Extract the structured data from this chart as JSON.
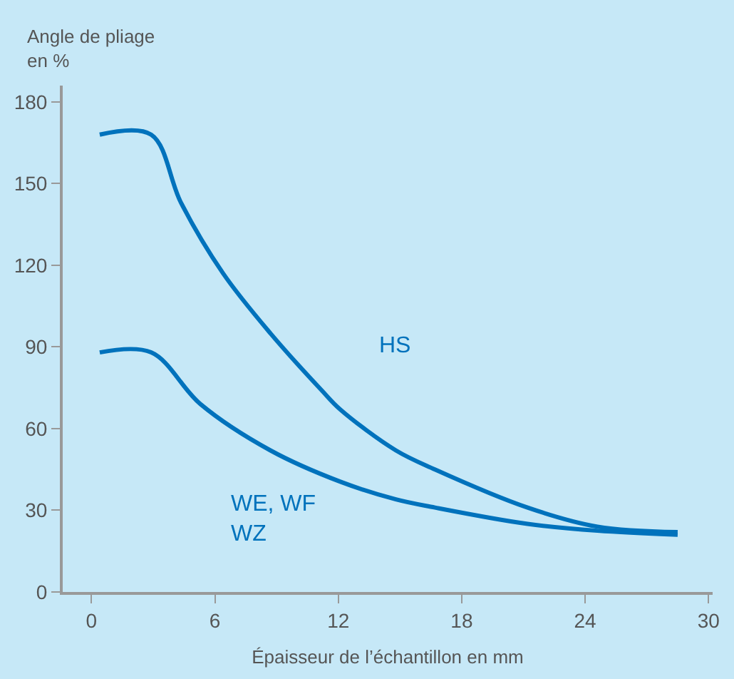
{
  "chart_data": {
    "type": "line",
    "xlabel": "Épaisseur de l’échantillon en mm",
    "ylabel": "Angle de pliage\nen %",
    "series": [
      {
        "name": "HS",
        "color": "#0072bc",
        "x": [
          0.4,
          2.9,
          4.35,
          6.4,
          8.7,
          11.2,
          12.1,
          14.8,
          16.7,
          21.2,
          24.6,
          28.5
        ],
        "values": [
          168,
          168,
          143,
          117,
          95,
          74,
          67,
          52,
          45,
          31,
          24,
          22
        ]
      },
      {
        "name": "WE, WF\nWZ",
        "color": "#0072bc",
        "x": [
          0.4,
          2.9,
          5.3,
          8.7,
          12.1,
          14.8,
          16.7,
          21.2,
          24.6,
          28.5
        ],
        "values": [
          88,
          88,
          69,
          52,
          40.5,
          34,
          31,
          25,
          22.5,
          21
        ]
      }
    ],
    "xlim": [
      -1.4,
      30.2
    ],
    "xticks": [
      0,
      6,
      12,
      18,
      24,
      30
    ],
    "ylim": [
      0,
      186
    ],
    "yticks": [
      0,
      30,
      60,
      90,
      120,
      150,
      180
    ],
    "grid": false,
    "legend": false,
    "marker": "none",
    "line_style": "solid"
  }
}
